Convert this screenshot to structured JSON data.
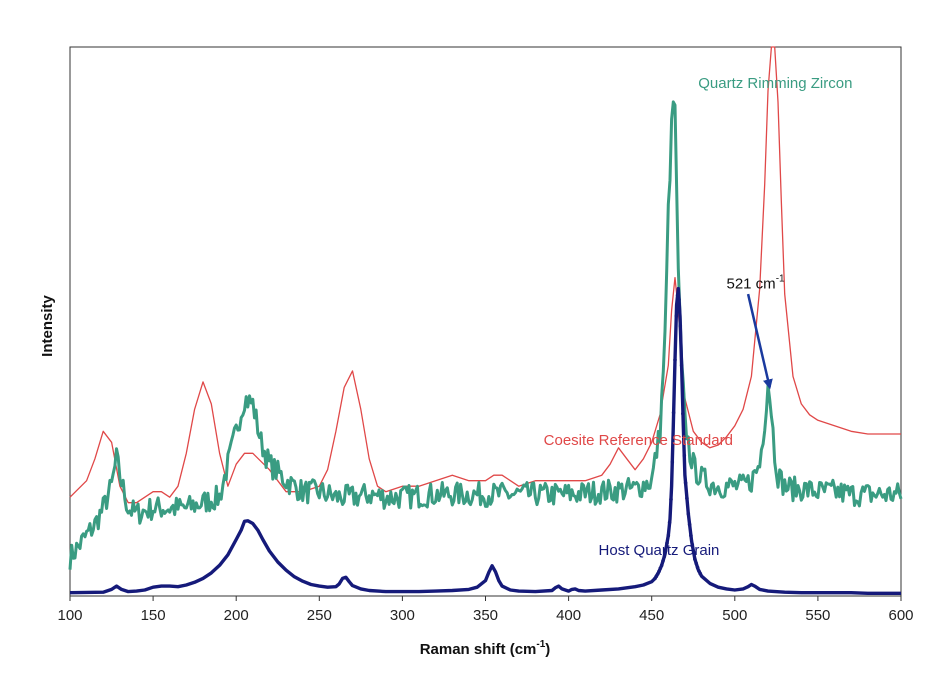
{
  "chart_data": {
    "type": "line",
    "title": "",
    "xlabel": "Raman shift (cm",
    "xlabel_sup": "-1",
    "xlabel_tail": ")",
    "ylabel": "Intensity",
    "xlim": [
      100,
      600
    ],
    "ylim": [
      0,
      100
    ],
    "x_ticks": [
      100,
      150,
      200,
      250,
      300,
      350,
      400,
      450,
      500,
      550,
      600
    ],
    "y_ticks_labeled": false,
    "grid": false,
    "colors": {
      "coesite": "#e04848",
      "rim": "#3a9c82",
      "host": "#151a7a",
      "arrow": "#1a3a9e"
    },
    "series": [
      {
        "key": "coesite",
        "name": "Coesite Reference Standard",
        "label_pos": [
          385,
          27.5
        ],
        "x": [
          100,
          110,
          115,
          120,
          125,
          130,
          135,
          140,
          150,
          155,
          160,
          165,
          170,
          175,
          180,
          185,
          190,
          195,
          200,
          205,
          210,
          220,
          230,
          240,
          250,
          255,
          260,
          265,
          270,
          275,
          280,
          285,
          290,
          300,
          310,
          320,
          330,
          340,
          350,
          355,
          360,
          365,
          370,
          380,
          390,
          400,
          410,
          420,
          425,
          430,
          435,
          440,
          445,
          450,
          455,
          460,
          462,
          464,
          466,
          468,
          470,
          475,
          480,
          485,
          490,
          495,
          500,
          505,
          510,
          515,
          518,
          520,
          522,
          524,
          526,
          528,
          530,
          535,
          540,
          545,
          550,
          560,
          570,
          580,
          590,
          600
        ],
        "y": [
          18,
          21,
          25,
          30,
          28,
          20,
          17,
          17,
          19,
          19,
          18,
          20,
          26,
          34,
          39,
          35,
          26,
          20,
          24,
          26,
          26,
          23,
          19,
          19,
          20,
          23,
          30,
          38,
          41,
          34,
          25,
          20,
          19,
          20,
          20,
          21,
          22,
          21,
          21,
          22,
          22,
          21,
          20,
          21,
          21,
          21,
          21,
          22,
          24,
          27,
          25,
          23,
          25,
          28,
          33,
          42,
          52,
          58,
          52,
          43,
          36,
          30,
          28,
          27,
          27.5,
          29,
          31,
          34,
          40,
          56,
          75,
          92,
          100,
          100,
          90,
          72,
          55,
          40,
          35,
          33,
          32,
          31,
          30,
          29.5,
          29.5,
          29.5
        ]
      },
      {
        "key": "rim",
        "name": "Quartz Rimming Zircon",
        "label_pos": [
          478,
          92.5
        ],
        "noise": 2.2,
        "x": [
          100,
          105,
          110,
          115,
          120,
          125,
          128,
          130,
          135,
          140,
          150,
          160,
          170,
          180,
          190,
          195,
          200,
          205,
          210,
          215,
          220,
          230,
          240,
          250,
          260,
          270,
          280,
          290,
          300,
          320,
          340,
          360,
          380,
          400,
          420,
          440,
          450,
          455,
          458,
          460,
          462,
          463,
          464,
          465,
          466,
          468,
          470,
          473,
          476,
          480,
          485,
          490,
          495,
          500,
          505,
          510,
          515,
          518,
          520,
          522,
          524,
          526,
          530,
          535,
          540,
          550,
          560,
          570,
          580,
          590,
          600
        ],
        "y": [
          7,
          9,
          11,
          13,
          16,
          20,
          25,
          22,
          16,
          15,
          16,
          16,
          16,
          17,
          18,
          24,
          30,
          36,
          35,
          28,
          24,
          21,
          19,
          19,
          18,
          18,
          18.5,
          18,
          18,
          18.5,
          18.5,
          18.5,
          18.5,
          18.5,
          19,
          19.5,
          21,
          30,
          47,
          70,
          85,
          90,
          88,
          75,
          58,
          42,
          32,
          26,
          23,
          21.5,
          20.5,
          20,
          20,
          20,
          20,
          21,
          24,
          32,
          39,
          34,
          26,
          22,
          20,
          19.5,
          19.5,
          19,
          19,
          18.5,
          18.5,
          18.5,
          18.5
        ]
      },
      {
        "key": "host",
        "name": "Host Quartz Grain",
        "label_pos": [
          418,
          7.5
        ],
        "x": [
          100,
          120,
          125,
          128,
          131,
          135,
          140,
          145,
          150,
          155,
          160,
          165,
          170,
          175,
          180,
          185,
          190,
          195,
          200,
          203,
          205,
          207,
          210,
          213,
          216,
          220,
          225,
          230,
          235,
          240,
          245,
          250,
          255,
          260,
          262,
          264,
          266,
          268,
          270,
          275,
          280,
          290,
          300,
          310,
          320,
          330,
          340,
          345,
          350,
          352,
          354,
          356,
          358,
          360,
          365,
          370,
          380,
          390,
          392,
          394,
          396,
          400,
          402,
          404,
          406,
          410,
          420,
          430,
          440,
          445,
          450,
          452,
          454,
          456,
          458,
          460,
          461,
          462,
          463,
          464,
          465,
          466,
          467,
          468,
          469,
          470,
          472,
          474,
          476,
          478,
          480,
          485,
          490,
          495,
          500,
          505,
          508,
          510,
          512,
          515,
          520,
          530,
          540,
          550,
          560,
          570,
          580,
          590,
          600
        ],
        "y": [
          0.6,
          0.7,
          1.2,
          1.8,
          1.2,
          0.8,
          0.9,
          1.1,
          1.6,
          1.8,
          1.8,
          1.7,
          2,
          2.5,
          3.2,
          4.2,
          5.6,
          7.5,
          10.3,
          12,
          13.6,
          13.7,
          13.2,
          12,
          10.3,
          8.2,
          6.2,
          4.7,
          3.5,
          2.7,
          2.1,
          1.8,
          1.6,
          1.7,
          2.2,
          3.2,
          3.4,
          2.6,
          1.9,
          1.3,
          1,
          0.8,
          0.8,
          0.8,
          0.9,
          1,
          1.2,
          1.6,
          2.8,
          4.3,
          5.5,
          4.4,
          2.8,
          1.8,
          1.1,
          0.9,
          0.8,
          1,
          1.5,
          1.8,
          1.3,
          0.9,
          1.2,
          1.3,
          1,
          0.9,
          1.1,
          1.3,
          1.7,
          2,
          2.6,
          3.2,
          4.2,
          5.6,
          7.6,
          11,
          14,
          20,
          31,
          43,
          53,
          56,
          51,
          42,
          31,
          22,
          15,
          10,
          6.7,
          4.8,
          3.6,
          2.3,
          1.6,
          1.3,
          1.1,
          1.3,
          1.7,
          2.1,
          1.8,
          1.2,
          0.9,
          0.7,
          0.6,
          0.6,
          0.6,
          0.6,
          0.5,
          0.5,
          0.5
        ]
      }
    ],
    "annotation": {
      "text": "521 cm",
      "sup": "-1",
      "text_pos": [
        495,
        56
      ],
      "arrow_from": [
        508,
        55
      ],
      "arrow_to": [
        521,
        38
      ]
    }
  }
}
